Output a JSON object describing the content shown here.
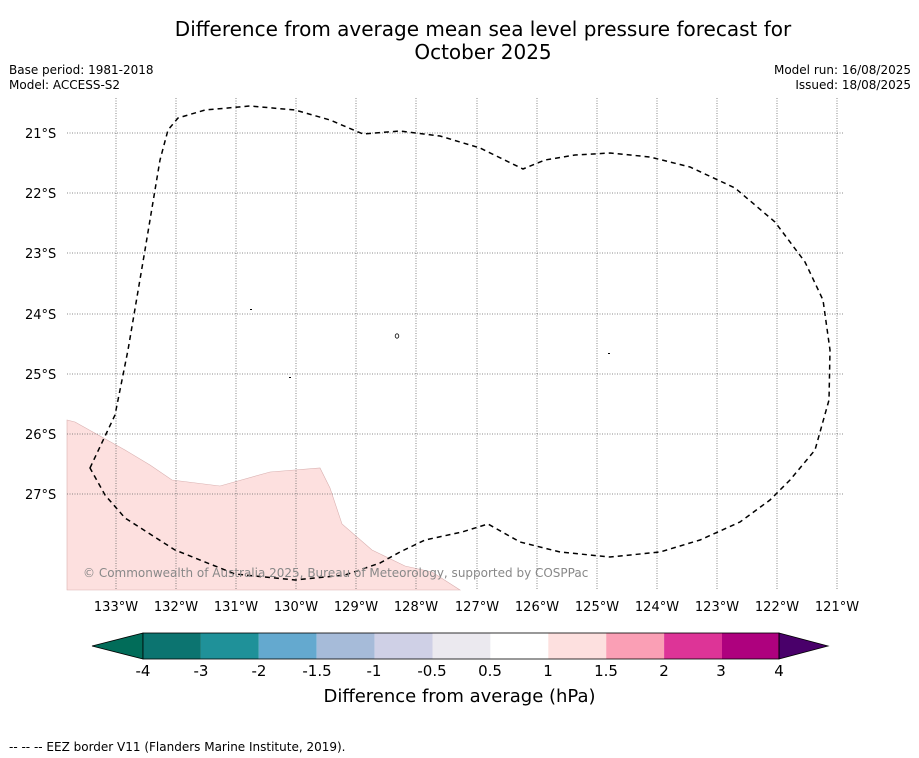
{
  "title_line1": "Difference from average mean sea level pressure forecast for",
  "title_line2": "October 2025",
  "meta_left": [
    "Base period: 1981-2018",
    "Model: ACCESS-S2"
  ],
  "meta_right": [
    "Model run: 16/08/2025",
    "Issued: 18/08/2025"
  ],
  "lat_labels": [
    "21°S",
    "22°S",
    "23°S",
    "24°S",
    "25°S",
    "26°S",
    "27°S"
  ],
  "lon_labels": [
    "133°W",
    "132°W",
    "131°W",
    "130°W",
    "129°W",
    "128°W",
    "127°W",
    "126°W",
    "125°W",
    "124°W",
    "123°W",
    "122°W",
    "121°W"
  ],
  "copyright": "© Commonwealth of Australia 2025, Bureau of Meteorology, supported by COSPPac",
  "colorbar": {
    "ticks": [
      "-4",
      "-3",
      "-2",
      "-1.5",
      "-1",
      "-0.5",
      "0.5",
      "1",
      "1.5",
      "2",
      "3",
      "4"
    ],
    "colors": [
      "#0c7470",
      "#1f9199",
      "#64a9cf",
      "#a6bbd9",
      "#cfd0e6",
      "#ebe9ef",
      "#ffffff",
      "#fde0df",
      "#fa9fb5",
      "#dd3497",
      "#ae017e",
      "#7a0177"
    ],
    "under_color": "#016c59",
    "over_color": "#49006a",
    "label": "Difference from average (hPa)"
  },
  "anomaly_fill_color": "#fde0df",
  "legend_footer": "--  --  -- EEZ border V11 (Flanders Marine Institute, 2019)."
}
